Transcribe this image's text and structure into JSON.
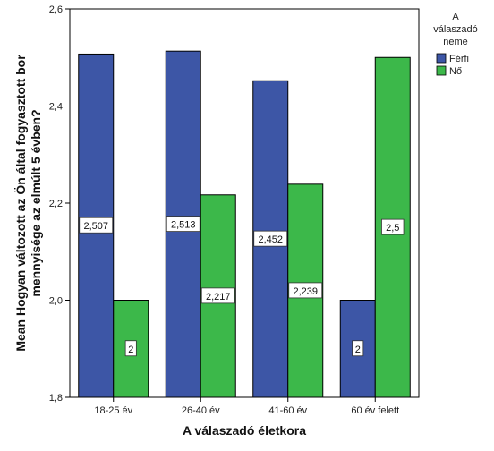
{
  "chart_data": {
    "type": "bar",
    "title": "",
    "xlabel": "A válaszadó életkora",
    "ylabel_lines": [
      "Mean  Hogyan változott az Ön által fogyasztott bor",
      "mennyisége az elmúlt 5 évben?"
    ],
    "categories": [
      "18-25 év",
      "26-40 év",
      "41-60 év",
      "60 év felett"
    ],
    "series": [
      {
        "name": "Férfi",
        "values": [
          2.507,
          2.513,
          2.452,
          2.0
        ],
        "labels": [
          "2,507",
          "2,513",
          "2,452",
          "2"
        ],
        "color": "#3d56a6"
      },
      {
        "name": "Nő",
        "values": [
          2.0,
          2.217,
          2.239,
          2.5
        ],
        "labels": [
          "2",
          "2,217",
          "2,239",
          "2,5"
        ],
        "color": "#3cb84a"
      }
    ],
    "ylim": [
      1.8,
      2.6
    ],
    "yticks": [
      1.8,
      2.0,
      2.2,
      2.4,
      2.6
    ],
    "ytick_labels": [
      "1,8",
      "2,0",
      "2,2",
      "2,4",
      "2,6"
    ],
    "grid": false,
    "legend": {
      "title_lines": [
        "A",
        "válaszadó",
        "neme"
      ],
      "position": "top-right"
    }
  }
}
